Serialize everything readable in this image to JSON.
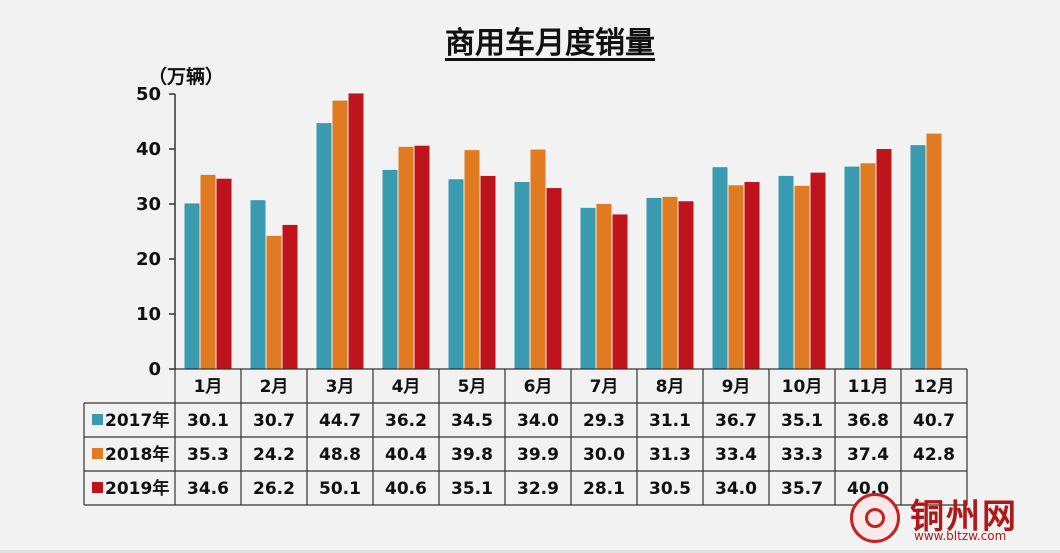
{
  "chart_data": {
    "type": "bar",
    "title": "商用车月度销量",
    "unit_label": "（万辆）",
    "categories": [
      "1月",
      "2月",
      "3月",
      "4月",
      "5月",
      "6月",
      "7月",
      "8月",
      "9月",
      "10月",
      "11月",
      "12月"
    ],
    "yticks": [
      "50",
      "40",
      "30",
      "20",
      "10",
      "0"
    ],
    "ylim": [
      0,
      50
    ],
    "grid": false,
    "legend": "data-table",
    "series": [
      {
        "name": "2017年",
        "color": "#3a9bb0",
        "values": [
          30.1,
          30.7,
          44.7,
          36.2,
          34.5,
          34.0,
          29.3,
          31.1,
          36.7,
          35.1,
          36.8,
          40.7
        ],
        "labels": [
          "30.1",
          "30.7",
          "44.7",
          "36.2",
          "34.5",
          "34.0",
          "29.3",
          "31.1",
          "36.7",
          "35.1",
          "36.8",
          "40.7"
        ]
      },
      {
        "name": "2018年",
        "color": "#e07b22",
        "values": [
          35.3,
          24.2,
          48.8,
          40.4,
          39.8,
          39.9,
          30.0,
          31.3,
          33.4,
          33.3,
          37.4,
          42.8
        ],
        "labels": [
          "35.3",
          "24.2",
          "48.8",
          "40.4",
          "39.8",
          "39.9",
          "30.0",
          "31.3",
          "33.4",
          "33.3",
          "37.4",
          "42.8"
        ]
      },
      {
        "name": "2019年",
        "color": "#c0141c",
        "values": [
          34.6,
          26.2,
          50.1,
          40.6,
          35.1,
          32.9,
          28.1,
          30.5,
          34.0,
          35.7,
          40.0,
          null
        ],
        "labels": [
          "34.6",
          "26.2",
          "50.1",
          "40.6",
          "35.1",
          "32.9",
          "28.1",
          "30.5",
          "34.0",
          "35.7",
          "40.0",
          ""
        ]
      }
    ]
  },
  "watermark": {
    "text": "铜州网",
    "url": "www.bltzw.com"
  }
}
